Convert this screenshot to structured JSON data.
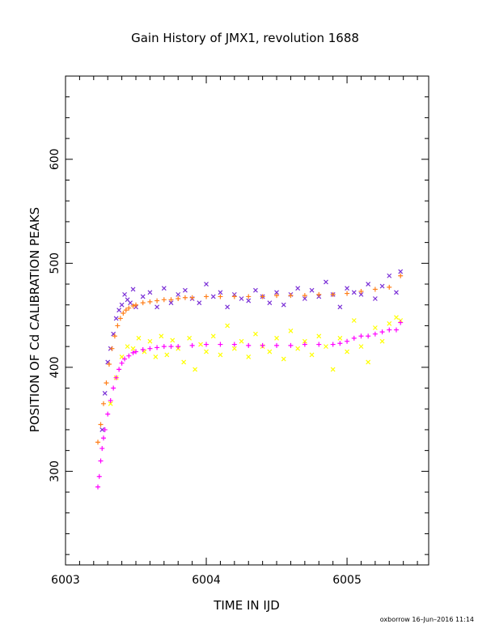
{
  "chart_data": {
    "type": "scatter",
    "title": "Gain History of JMX1, revolution 1688",
    "xlabel": "TIME IN IJD",
    "ylabel": "POSITION OF Cd CALIBRATION PEAKS",
    "xlim": [
      6003.0,
      6005.58
    ],
    "ylim": [
      210,
      680
    ],
    "xticks": [
      "6003",
      "6004",
      "6005"
    ],
    "yticks": [
      "300",
      "400",
      "500",
      "600"
    ],
    "grid": false,
    "series": [
      {
        "marker": "x",
        "color": "#7a2fd6",
        "x": [
          6003.26,
          6003.28,
          6003.3,
          6003.32,
          6003.34,
          6003.36,
          6003.38,
          6003.4,
          6003.42,
          6003.44,
          6003.46,
          6003.48,
          6003.5,
          6003.55,
          6003.6,
          6003.65,
          6003.7,
          6003.75,
          6003.8,
          6003.85,
          6003.9,
          6003.95,
          6004.0,
          6004.05,
          6004.1,
          6004.15,
          6004.2,
          6004.25,
          6004.3,
          6004.35,
          6004.4,
          6004.45,
          6004.5,
          6004.55,
          6004.6,
          6004.65,
          6004.7,
          6004.75,
          6004.8,
          6004.85,
          6004.9,
          6004.95,
          6005.0,
          6005.05,
          6005.1,
          6005.15,
          6005.2,
          6005.25,
          6005.3,
          6005.35,
          6005.38
        ],
        "values": [
          340,
          375,
          405,
          418,
          432,
          447,
          455,
          460,
          470,
          465,
          462,
          475,
          458,
          468,
          472,
          458,
          476,
          462,
          470,
          474,
          466,
          462,
          480,
          468,
          472,
          458,
          470,
          466,
          464,
          474,
          468,
          462,
          472,
          460,
          470,
          476,
          466,
          474,
          468,
          482,
          470,
          458,
          476,
          472,
          470,
          480,
          466,
          478,
          488,
          472,
          492
        ]
      },
      {
        "marker": "+",
        "color": "#ff7f1a",
        "x": [
          6003.23,
          6003.25,
          6003.27,
          6003.29,
          6003.31,
          6003.33,
          6003.35,
          6003.37,
          6003.39,
          6003.41,
          6003.43,
          6003.45,
          6003.48,
          6003.5,
          6003.55,
          6003.6,
          6003.65,
          6003.7,
          6003.75,
          6003.8,
          6003.85,
          6003.9,
          6004.0,
          6004.1,
          6004.2,
          6004.3,
          6004.4,
          6004.5,
          6004.6,
          6004.7,
          6004.8,
          6004.9,
          6005.0,
          6005.1,
          6005.2,
          6005.3,
          6005.38
        ],
        "values": [
          328,
          345,
          365,
          385,
          403,
          418,
          430,
          440,
          447,
          452,
          455,
          457,
          459,
          460,
          462,
          463,
          464,
          465,
          465,
          466,
          467,
          467,
          468,
          468,
          468,
          468,
          468,
          469,
          469,
          469,
          470,
          470,
          471,
          473,
          475,
          477,
          488
        ]
      },
      {
        "marker": "x",
        "color": "#ffff00",
        "x": [
          6003.32,
          6003.36,
          6003.4,
          6003.44,
          6003.48,
          6003.52,
          6003.56,
          6003.6,
          6003.64,
          6003.68,
          6003.72,
          6003.76,
          6003.8,
          6003.84,
          6003.88,
          6003.92,
          6003.96,
          6004.0,
          6004.05,
          6004.1,
          6004.15,
          6004.2,
          6004.25,
          6004.3,
          6004.35,
          6004.4,
          6004.45,
          6004.5,
          6004.55,
          6004.6,
          6004.65,
          6004.7,
          6004.75,
          6004.8,
          6004.85,
          6004.9,
          6004.95,
          6005.0,
          6005.05,
          6005.1,
          6005.15,
          6005.2,
          6005.25,
          6005.3,
          6005.35,
          6005.38
        ],
        "values": [
          365,
          390,
          410,
          420,
          418,
          428,
          415,
          425,
          410,
          430,
          412,
          426,
          418,
          405,
          428,
          398,
          422,
          415,
          430,
          412,
          440,
          418,
          425,
          410,
          432,
          420,
          415,
          428,
          408,
          435,
          418,
          425,
          412,
          430,
          420,
          398,
          428,
          415,
          445,
          420,
          405,
          438,
          425,
          442,
          448,
          445
        ]
      },
      {
        "marker": "+",
        "color": "#ff00ff",
        "x": [
          6003.23,
          6003.24,
          6003.25,
          6003.26,
          6003.27,
          6003.28,
          6003.3,
          6003.32,
          6003.34,
          6003.36,
          6003.38,
          6003.4,
          6003.42,
          6003.45,
          6003.48,
          6003.5,
          6003.55,
          6003.6,
          6003.65,
          6003.7,
          6003.75,
          6003.8,
          6003.9,
          6004.0,
          6004.1,
          6004.2,
          6004.3,
          6004.4,
          6004.5,
          6004.6,
          6004.7,
          6004.8,
          6004.9,
          6004.95,
          6005.0,
          6005.05,
          6005.1,
          6005.15,
          6005.2,
          6005.25,
          6005.3,
          6005.35,
          6005.38
        ],
        "values": [
          285,
          295,
          310,
          322,
          332,
          340,
          355,
          368,
          380,
          390,
          398,
          404,
          408,
          411,
          414,
          415,
          417,
          418,
          419,
          420,
          420,
          420,
          421,
          422,
          422,
          422,
          421,
          421,
          421,
          421,
          422,
          422,
          422,
          423,
          425,
          428,
          430,
          430,
          432,
          434,
          436,
          436,
          443
        ]
      }
    ]
  },
  "footer": "oxborrow 16–Jun–2016 11:14"
}
